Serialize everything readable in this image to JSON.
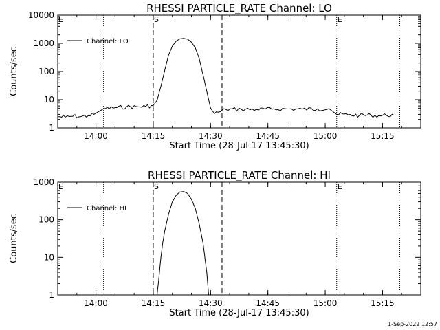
{
  "chart_data": [
    {
      "type": "line",
      "title": "RHESSI PARTICLE_RATE Channel: LO",
      "xlabel": "Start Time (28-Jul-17 13:45:30)",
      "ylabel": "Counts/sec",
      "yscale": "log",
      "ylim": [
        1,
        10000
      ],
      "xlim": [
        "13:50:00",
        "15:25:00"
      ],
      "x_tick_labels": [
        "14:00",
        "14:15",
        "14:30",
        "14:45",
        "15:00",
        "15:15"
      ],
      "y_tick_labels": [
        "1",
        "10",
        "100",
        "1000",
        "10000"
      ],
      "series": [
        {
          "name": "Channel: LO",
          "x": [
            "13:50:00",
            "13:52:00",
            "13:54:00",
            "13:56:00",
            "13:58:00",
            "13:59:30",
            "14:02:00",
            "14:05:00",
            "14:08:00",
            "14:11:00",
            "14:13:00",
            "14:15:00",
            "14:16:00",
            "14:17:00",
            "14:18:00",
            "14:19:00",
            "14:20:00",
            "14:21:00",
            "14:22:00",
            "14:23:00",
            "14:24:00",
            "14:25:00",
            "14:26:00",
            "14:27:00",
            "14:28:00",
            "14:29:00",
            "14:30:00",
            "14:31:00",
            "14:32:00",
            "14:34:00",
            "14:38:00",
            "14:42:00",
            "14:46:00",
            "14:50:00",
            "14:54:00",
            "14:58:00",
            "15:01:00",
            "15:03:00",
            "15:06:00",
            "15:09:00",
            "15:12:00",
            "15:14:00",
            "15:16:00",
            "15:18:00"
          ],
          "values": [
            2.5,
            2.4,
            2.6,
            2.5,
            2.7,
            3.0,
            4.8,
            5.2,
            5.5,
            5.6,
            5.8,
            6.2,
            9.5,
            30,
            110,
            380,
            800,
            1200,
            1450,
            1500,
            1400,
            1100,
            700,
            300,
            80,
            20,
            5.0,
            3.2,
            3.6,
            4.5,
            4.6,
            4.5,
            4.6,
            4.7,
            4.6,
            4.7,
            4.8,
            3.0,
            2.9,
            2.8,
            2.8,
            2.7,
            2.8,
            2.8
          ]
        }
      ],
      "annotations": [
        {
          "text": "S",
          "x": "14:15:00",
          "line": "dashed"
        },
        {
          "text": "",
          "x": "14:33:00",
          "line": "dashed"
        },
        {
          "text": "E",
          "x": "15:03:00",
          "line": "dotted"
        },
        {
          "text": "",
          "x": "14:02:00",
          "line": "dotted"
        },
        {
          "text": "",
          "x": "15:19:30",
          "line": "dotted"
        },
        {
          "text": "E",
          "x": "13:50:00",
          "line": "none"
        }
      ],
      "legend_position": "top-left"
    },
    {
      "type": "line",
      "title": "RHESSI PARTICLE_RATE Channel: HI",
      "xlabel": "Start Time (28-Jul-17 13:45:30)",
      "ylabel": "Counts/sec",
      "yscale": "log",
      "ylim": [
        1,
        1000
      ],
      "xlim": [
        "13:50:00",
        "15:25:00"
      ],
      "x_tick_labels": [
        "14:00",
        "14:15",
        "14:30",
        "14:45",
        "15:00",
        "15:15"
      ],
      "y_tick_labels": [
        "1",
        "10",
        "100",
        "1000"
      ],
      "series": [
        {
          "name": "Channel: HI",
          "x": [
            "14:16:00",
            "14:16:30",
            "14:17:00",
            "14:17:30",
            "14:18:00",
            "14:19:00",
            "14:20:00",
            "14:21:00",
            "14:22:00",
            "14:23:00",
            "14:24:00",
            "14:25:00",
            "14:26:00",
            "14:27:00",
            "14:28:00",
            "14:29:00",
            "14:29:30"
          ],
          "values": [
            1.0,
            3.0,
            10,
            25,
            50,
            140,
            300,
            450,
            550,
            560,
            500,
            350,
            200,
            80,
            25,
            4,
            1.0
          ]
        }
      ],
      "annotations": [
        {
          "text": "S",
          "x": "14:15:00",
          "line": "dashed"
        },
        {
          "text": "",
          "x": "14:33:00",
          "line": "dashed"
        },
        {
          "text": "E",
          "x": "15:03:00",
          "line": "dotted"
        },
        {
          "text": "",
          "x": "14:02:00",
          "line": "dotted"
        },
        {
          "text": "",
          "x": "15:19:30",
          "line": "dotted"
        },
        {
          "text": "E",
          "x": "13:50:00",
          "line": "none"
        }
      ],
      "legend_position": "top-left"
    }
  ],
  "timestamp": "1-Sep-2022 12:57"
}
